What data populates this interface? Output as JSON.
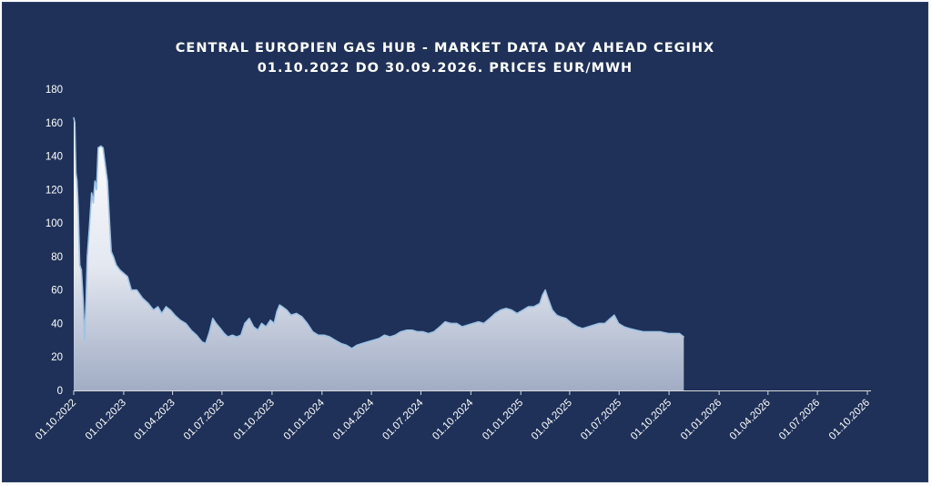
{
  "colors": {
    "background": "#1f3158",
    "fill": "#ffffff",
    "line": "#9ec3e6",
    "axis": "#d9d9d9"
  },
  "chart_data": {
    "type": "area",
    "title": "CENTRAL EUROPIEN GAS HUB - MARKET DATA DAY AHEAD CEGIHX",
    "subtitle": "01.10.2022 DO 30.09.2026. PRICES EUR/MWH",
    "xlabel": "",
    "ylabel": "",
    "ylim": [
      0,
      180
    ],
    "yticks": [
      0,
      20,
      40,
      60,
      80,
      100,
      120,
      140,
      160,
      180
    ],
    "xlim": [
      "2022-10-01",
      "2026-10-01"
    ],
    "xtick_labels": [
      "01.10.2022",
      "01.01.2023",
      "01.04.2023",
      "01.07.2023",
      "01.10.2023",
      "01.01.2024",
      "01.04.2024",
      "01.07.2024",
      "01.10.2024",
      "01.01.2025",
      "01.04.2025",
      "01.07.2025",
      "01.10.2025",
      "01.01.2026",
      "01.04.2026",
      "01.07.2026",
      "01.10.2026"
    ],
    "xtick_dates": [
      "2022-10-01",
      "2023-01-01",
      "2023-04-01",
      "2023-07-01",
      "2023-10-01",
      "2024-01-01",
      "2024-04-01",
      "2024-07-01",
      "2024-10-01",
      "2025-01-01",
      "2025-04-01",
      "2025-07-01",
      "2025-10-01",
      "2026-01-01",
      "2026-04-01",
      "2026-07-01",
      "2026-10-01"
    ],
    "grid": false,
    "legend": "none",
    "series": [
      {
        "points": [
          [
            "2022-10-01",
            163
          ],
          [
            "2022-10-03",
            160
          ],
          [
            "2022-10-05",
            130
          ],
          [
            "2022-10-07",
            125
          ],
          [
            "2022-10-09",
            110
          ],
          [
            "2022-10-12",
            75
          ],
          [
            "2022-10-15",
            72
          ],
          [
            "2022-10-18",
            56
          ],
          [
            "2022-10-21",
            30
          ],
          [
            "2022-10-24",
            55
          ],
          [
            "2022-10-26",
            80
          ],
          [
            "2022-10-30",
            98
          ],
          [
            "2022-11-03",
            118
          ],
          [
            "2022-11-06",
            112
          ],
          [
            "2022-11-09",
            125
          ],
          [
            "2022-11-12",
            120
          ],
          [
            "2022-11-15",
            145
          ],
          [
            "2022-11-20",
            146
          ],
          [
            "2022-11-24",
            145
          ],
          [
            "2022-11-28",
            135
          ],
          [
            "2022-12-02",
            125
          ],
          [
            "2022-12-06",
            100
          ],
          [
            "2022-12-09",
            83
          ],
          [
            "2022-12-13",
            80
          ],
          [
            "2022-12-18",
            75
          ],
          [
            "2022-12-25",
            72
          ],
          [
            "2023-01-01",
            70
          ],
          [
            "2023-01-08",
            68
          ],
          [
            "2023-01-15",
            60
          ],
          [
            "2023-01-25",
            60
          ],
          [
            "2023-02-05",
            55
          ],
          [
            "2023-02-15",
            52
          ],
          [
            "2023-02-25",
            48
          ],
          [
            "2023-03-05",
            50
          ],
          [
            "2023-03-12",
            46
          ],
          [
            "2023-03-20",
            50
          ],
          [
            "2023-03-28",
            48
          ],
          [
            "2023-04-05",
            45
          ],
          [
            "2023-04-15",
            42
          ],
          [
            "2023-04-25",
            40
          ],
          [
            "2023-05-05",
            36
          ],
          [
            "2023-05-15",
            33
          ],
          [
            "2023-05-25",
            29
          ],
          [
            "2023-06-01",
            28
          ],
          [
            "2023-06-08",
            35
          ],
          [
            "2023-06-14",
            43
          ],
          [
            "2023-06-20",
            40
          ],
          [
            "2023-06-28",
            37
          ],
          [
            "2023-07-05",
            34
          ],
          [
            "2023-07-12",
            32
          ],
          [
            "2023-07-20",
            33
          ],
          [
            "2023-07-28",
            32
          ],
          [
            "2023-08-05",
            33
          ],
          [
            "2023-08-12",
            40
          ],
          [
            "2023-08-20",
            43
          ],
          [
            "2023-08-28",
            38
          ],
          [
            "2023-09-05",
            36
          ],
          [
            "2023-09-12",
            40
          ],
          [
            "2023-09-20",
            38
          ],
          [
            "2023-09-28",
            42
          ],
          [
            "2023-10-05",
            40
          ],
          [
            "2023-10-10",
            47
          ],
          [
            "2023-10-15",
            51
          ],
          [
            "2023-10-20",
            50
          ],
          [
            "2023-10-28",
            48
          ],
          [
            "2023-11-05",
            45
          ],
          [
            "2023-11-15",
            46
          ],
          [
            "2023-11-25",
            44
          ],
          [
            "2023-12-05",
            40
          ],
          [
            "2023-12-15",
            35
          ],
          [
            "2023-12-25",
            33
          ],
          [
            "2024-01-05",
            33
          ],
          [
            "2024-01-15",
            32
          ],
          [
            "2024-01-25",
            30
          ],
          [
            "2024-02-05",
            28
          ],
          [
            "2024-02-15",
            27
          ],
          [
            "2024-02-25",
            25
          ],
          [
            "2024-03-05",
            27
          ],
          [
            "2024-03-15",
            28
          ],
          [
            "2024-03-25",
            29
          ],
          [
            "2024-04-05",
            30
          ],
          [
            "2024-04-15",
            31
          ],
          [
            "2024-04-25",
            33
          ],
          [
            "2024-05-05",
            32
          ],
          [
            "2024-05-15",
            33
          ],
          [
            "2024-05-25",
            35
          ],
          [
            "2024-06-05",
            36
          ],
          [
            "2024-06-15",
            36
          ],
          [
            "2024-06-25",
            35
          ],
          [
            "2024-07-05",
            35
          ],
          [
            "2024-07-15",
            34
          ],
          [
            "2024-07-25",
            35
          ],
          [
            "2024-08-05",
            38
          ],
          [
            "2024-08-15",
            41
          ],
          [
            "2024-08-25",
            40
          ],
          [
            "2024-09-05",
            40
          ],
          [
            "2024-09-15",
            38
          ],
          [
            "2024-09-25",
            39
          ],
          [
            "2024-10-05",
            40
          ],
          [
            "2024-10-15",
            41
          ],
          [
            "2024-10-25",
            40
          ],
          [
            "2024-11-05",
            43
          ],
          [
            "2024-11-15",
            46
          ],
          [
            "2024-11-25",
            48
          ],
          [
            "2024-12-05",
            49
          ],
          [
            "2024-12-15",
            48
          ],
          [
            "2024-12-25",
            46
          ],
          [
            "2025-01-05",
            48
          ],
          [
            "2025-01-15",
            50
          ],
          [
            "2025-01-25",
            50
          ],
          [
            "2025-02-05",
            52
          ],
          [
            "2025-02-10",
            57
          ],
          [
            "2025-02-15",
            60
          ],
          [
            "2025-02-20",
            55
          ],
          [
            "2025-02-28",
            48
          ],
          [
            "2025-03-08",
            45
          ],
          [
            "2025-03-15",
            44
          ],
          [
            "2025-03-25",
            43
          ],
          [
            "2025-04-05",
            40
          ],
          [
            "2025-04-15",
            38
          ],
          [
            "2025-04-25",
            37
          ],
          [
            "2025-05-05",
            38
          ],
          [
            "2025-05-15",
            39
          ],
          [
            "2025-05-25",
            40
          ],
          [
            "2025-06-05",
            40
          ],
          [
            "2025-06-15",
            43
          ],
          [
            "2025-06-22",
            45
          ],
          [
            "2025-06-30",
            40
          ],
          [
            "2025-07-10",
            38
          ],
          [
            "2025-07-20",
            37
          ],
          [
            "2025-08-01",
            36
          ],
          [
            "2025-08-15",
            35
          ],
          [
            "2025-08-30",
            35
          ],
          [
            "2025-09-15",
            35
          ],
          [
            "2025-09-30",
            34
          ],
          [
            "2025-10-10",
            34
          ],
          [
            "2025-10-20",
            34
          ],
          [
            "2025-10-28",
            32
          ]
        ]
      }
    ]
  }
}
